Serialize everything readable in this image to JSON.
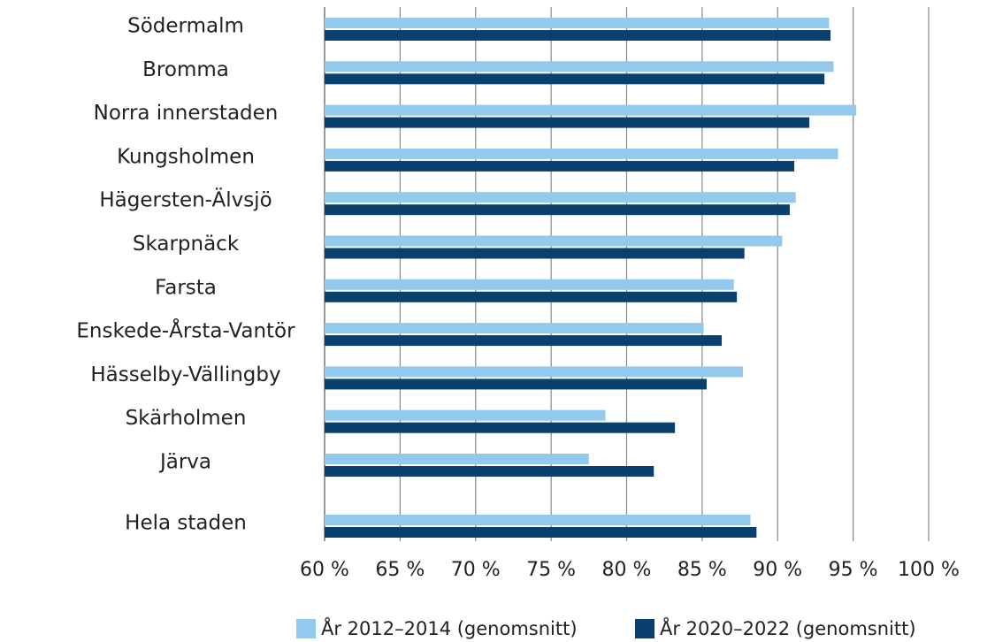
{
  "chart_data": {
    "type": "bar",
    "orientation": "horizontal",
    "categories": [
      "Södermalm",
      "Bromma",
      "Norra innerstaden",
      "Kungsholmen",
      "Hägersten-Älvsjö",
      "Skarpnäck",
      "Farsta",
      "Enskede-Årsta-Vantör",
      "Hässelby-Vällingby",
      "Skärholmen",
      "Järva",
      "Hela staden"
    ],
    "series": [
      {
        "name": "År 2012–2014 (genomsnitt)",
        "color": "#93c9ec",
        "values": [
          93.4,
          93.7,
          95.2,
          94.0,
          91.2,
          90.3,
          87.1,
          85.1,
          87.7,
          78.6,
          77.5,
          88.2
        ]
      },
      {
        "name": "År 2020–2022 (genomsnitt)",
        "color": "#0b3f6e",
        "values": [
          93.5,
          93.1,
          92.1,
          91.1,
          90.8,
          87.8,
          87.3,
          86.3,
          85.3,
          83.2,
          81.8,
          88.6
        ]
      }
    ],
    "xlim": [
      60,
      100
    ],
    "xticks": [
      {
        "value": 60,
        "label": "60 %"
      },
      {
        "value": 65,
        "label": "65 %"
      },
      {
        "value": 70,
        "label": "70 %"
      },
      {
        "value": 75,
        "label": "75 %"
      },
      {
        "value": 80,
        "label": "80 %"
      },
      {
        "value": 85,
        "label": "85 %"
      },
      {
        "value": 90,
        "label": "90 %"
      },
      {
        "value": 95,
        "label": "95 %"
      },
      {
        "value": 100,
        "label": "100 %"
      }
    ],
    "grid": true,
    "legend": "bottom"
  }
}
